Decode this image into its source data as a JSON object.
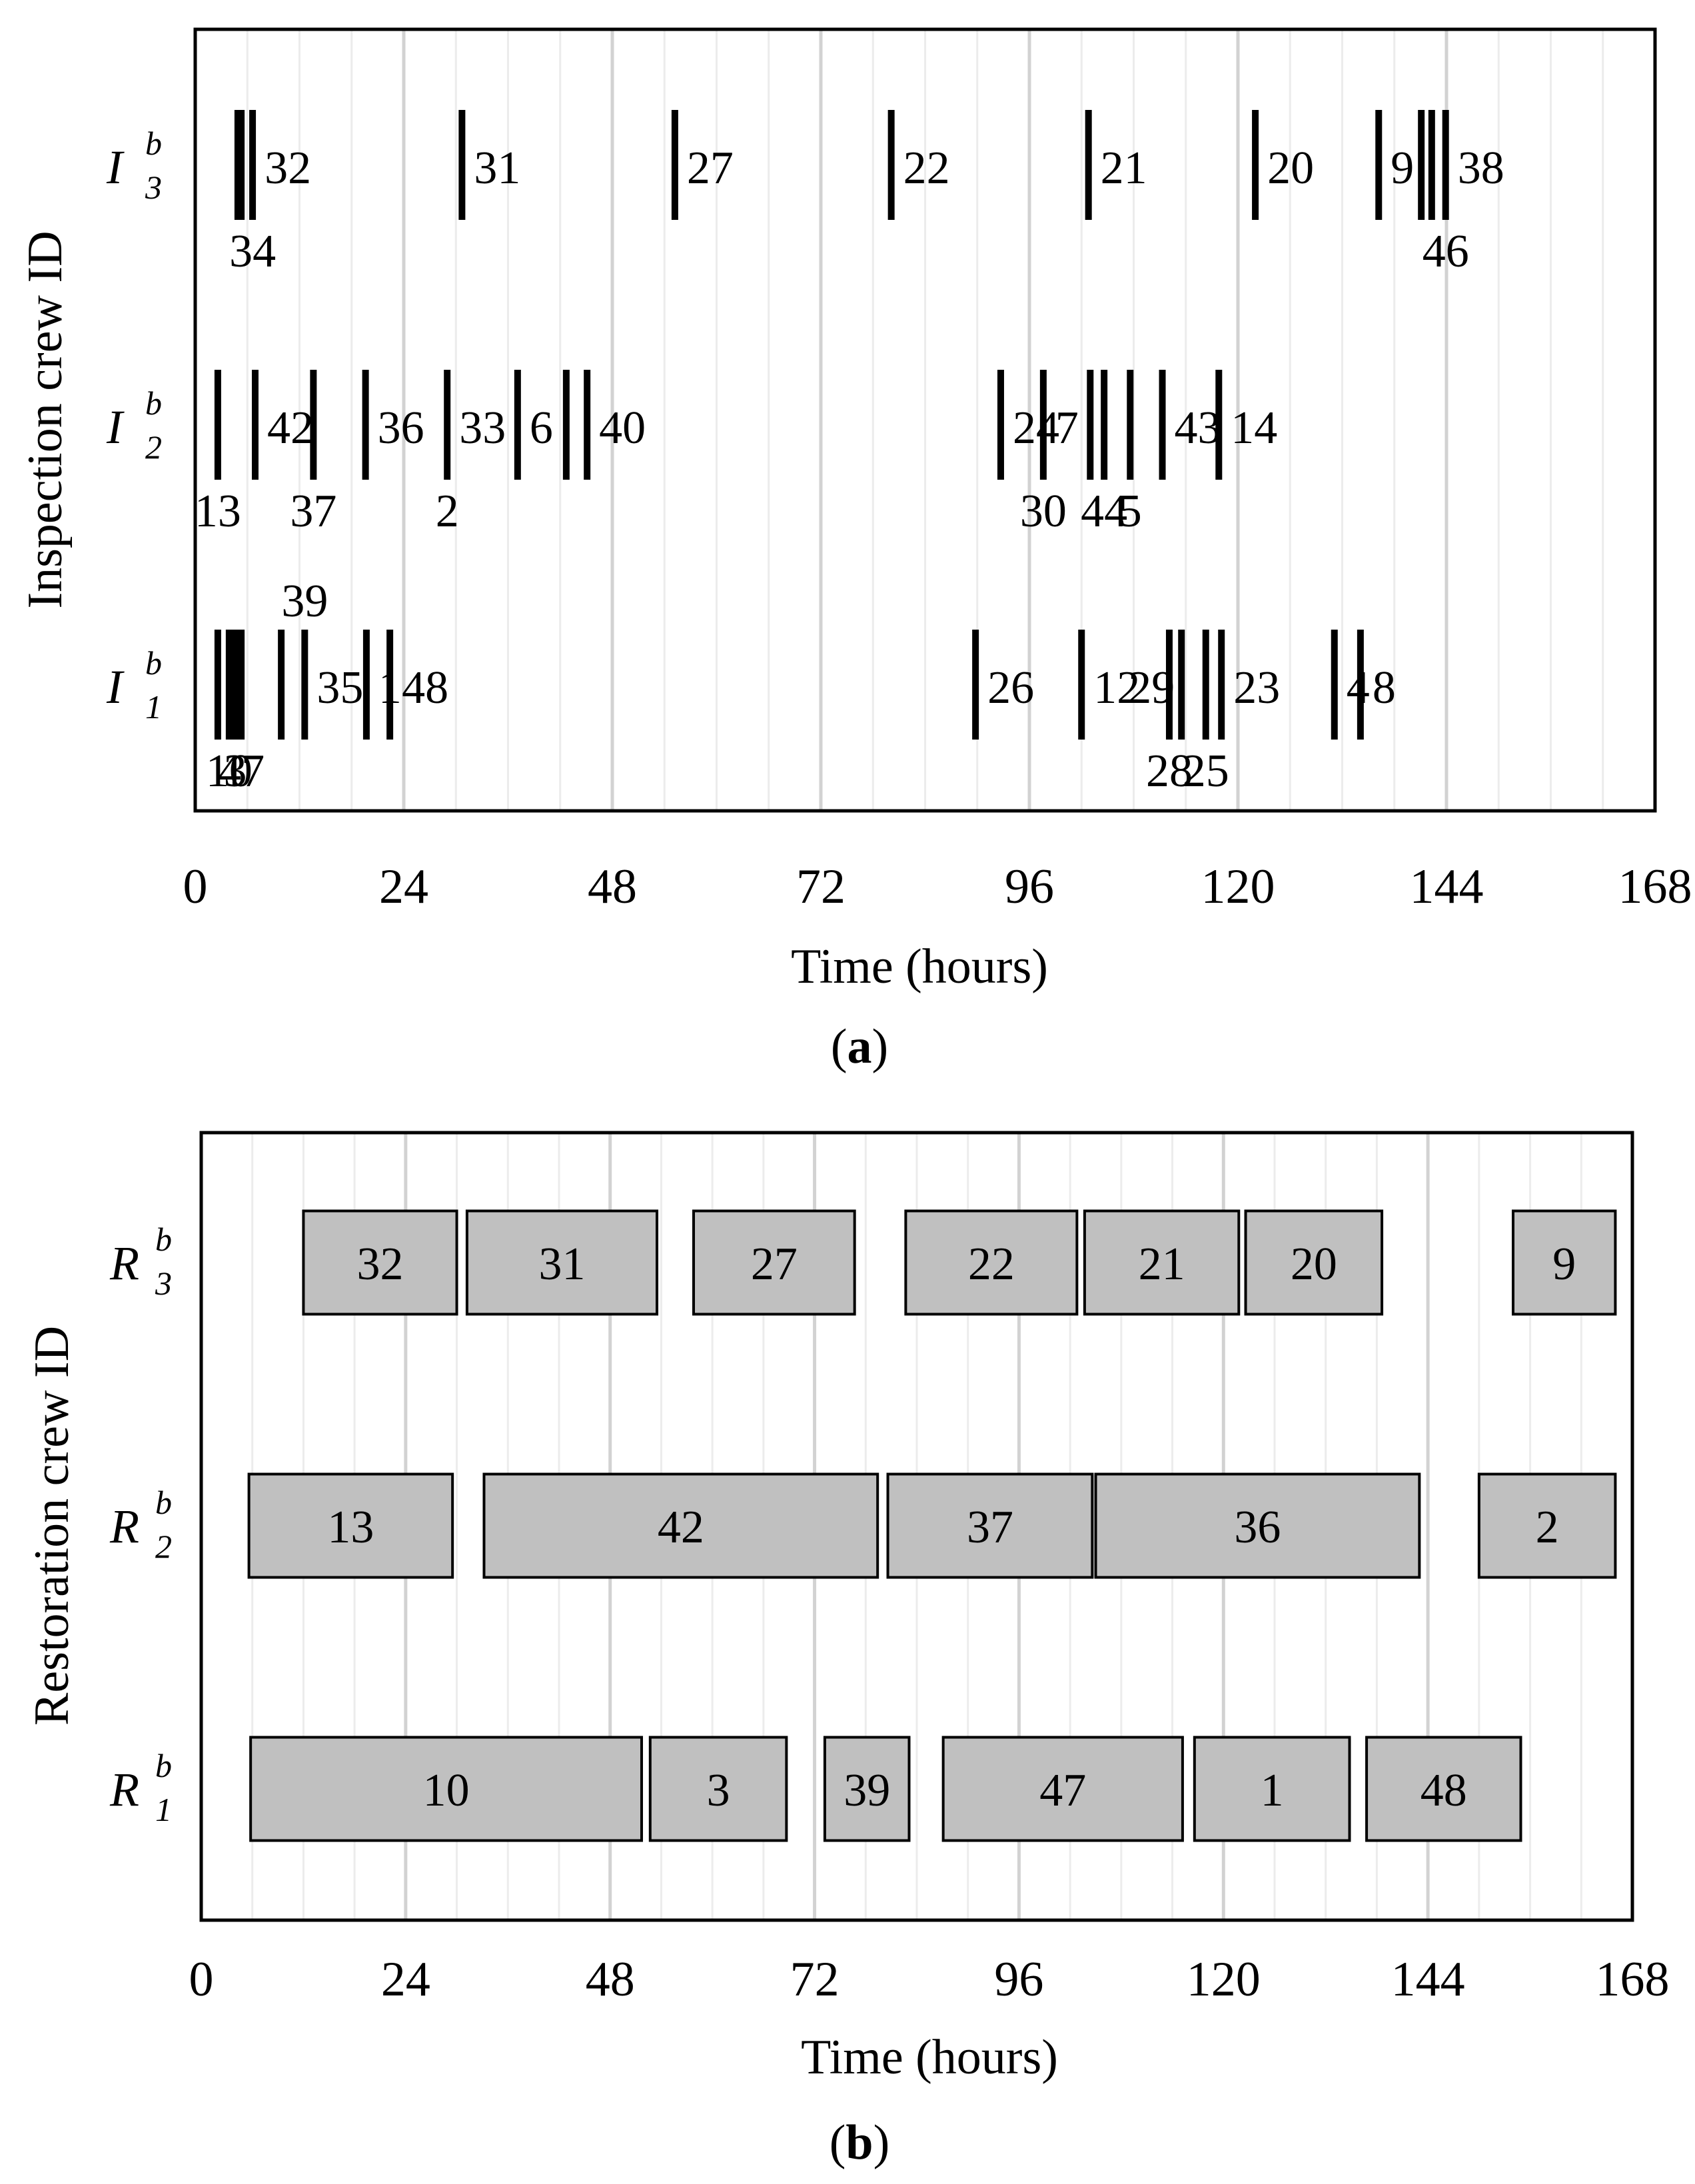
{
  "chart_data": [
    {
      "panel": "a",
      "type": "event",
      "caption_letter": "a",
      "xlabel": "Time (hours)",
      "ylabel": "Inspection crew ID",
      "xlim": [
        0,
        168
      ],
      "xticks": [
        "0",
        "24",
        "48",
        "72",
        "96",
        "120",
        "144",
        "168"
      ],
      "grid": "vertical",
      "crews": [
        {
          "name": "I",
          "sup": "b",
          "sub": "3",
          "events": [
            {
              "t": 4.9,
              "label": "",
              "above": ""
            },
            {
              "t": 5.3,
              "label": "",
              "above": ""
            },
            {
              "t": 6.6,
              "label": "32",
              "below": "34"
            },
            {
              "t": 30.7,
              "label": "31"
            },
            {
              "t": 55.2,
              "label": "27"
            },
            {
              "t": 80.1,
              "label": "22"
            },
            {
              "t": 102.8,
              "label": "21"
            },
            {
              "t": 122.0,
              "label": "20"
            },
            {
              "t": 136.2,
              "label": "9"
            },
            {
              "t": 141.1,
              "label": ""
            },
            {
              "t": 142.3,
              "label": ""
            },
            {
              "t": 143.9,
              "label": "38",
              "below": "46"
            }
          ]
        },
        {
          "name": "I",
          "sup": "b",
          "sub": "2",
          "events": [
            {
              "t": 2.6,
              "label": "",
              "below": "13"
            },
            {
              "t": 6.9,
              "label": "42"
            },
            {
              "t": 13.6,
              "label": "",
              "below": "37"
            },
            {
              "t": 19.6,
              "label": "36"
            },
            {
              "t": 29.0,
              "label": "33",
              "below": "2"
            },
            {
              "t": 37.1,
              "label": "6"
            },
            {
              "t": 42.7,
              "label": ""
            },
            {
              "t": 45.1,
              "label": "40"
            },
            {
              "t": 92.7,
              "label": "24"
            },
            {
              "t": 97.6,
              "label": "7",
              "below": "30"
            },
            {
              "t": 103.0,
              "label": ""
            },
            {
              "t": 104.6,
              "label": "",
              "below": "44"
            },
            {
              "t": 107.6,
              "label": "",
              "below": "5"
            },
            {
              "t": 111.3,
              "label": "43"
            },
            {
              "t": 117.8,
              "label": "14"
            }
          ]
        },
        {
          "name": "I",
          "sup": "b",
          "sub": "1",
          "events": [
            {
              "t": 2.6,
              "label": ""
            },
            {
              "t": 3.9,
              "label": "",
              "below": "10"
            },
            {
              "t": 4.6,
              "label": "",
              "below": "3"
            },
            {
              "t": 5.3,
              "label": "",
              "below": "47"
            },
            {
              "t": 9.9,
              "label": ""
            },
            {
              "t": 12.6,
              "label": "35",
              "above": "39"
            },
            {
              "t": 19.7,
              "label": "1"
            },
            {
              "t": 22.4,
              "label": "48"
            },
            {
              "t": 89.8,
              "label": "26"
            },
            {
              "t": 102.0,
              "label": "12"
            },
            {
              "t": 112.1,
              "label": "",
              "below": "28"
            },
            {
              "t": 113.5,
              "label": ""
            },
            {
              "t": 116.3,
              "label": "",
              "below": "25"
            },
            {
              "t": 118.1,
              "label": "23",
              "sub_ref": "29"
            },
            {
              "t": 131.1,
              "label": "4"
            },
            {
              "t": 134.1,
              "label": "8"
            }
          ]
        }
      ]
    },
    {
      "panel": "b",
      "type": "gantt",
      "caption_letter": "b",
      "xlabel": "Time (hours)",
      "ylabel": "Restoration crew ID",
      "xlim": [
        0,
        168
      ],
      "xticks": [
        "0",
        "24",
        "48",
        "72",
        "96",
        "120",
        "144",
        "168"
      ],
      "grid": "vertical",
      "bar_color": "#c0c0c0",
      "crews": [
        {
          "name": "R",
          "sup": "b",
          "sub": "3",
          "tasks": [
            {
              "label": "32",
              "start": 12.0,
              "end": 30.0
            },
            {
              "label": "31",
              "start": 31.2,
              "end": 53.5
            },
            {
              "label": "27",
              "start": 57.8,
              "end": 76.7
            },
            {
              "label": "22",
              "start": 82.7,
              "end": 102.8
            },
            {
              "label": "21",
              "start": 103.7,
              "end": 121.8
            },
            {
              "label": "20",
              "start": 122.6,
              "end": 138.6
            },
            {
              "label": "9",
              "start": 154.0,
              "end": 166.0
            }
          ]
        },
        {
          "name": "R",
          "sup": "b",
          "sub": "2",
          "tasks": [
            {
              "label": "13",
              "start": 5.6,
              "end": 29.5
            },
            {
              "label": "42",
              "start": 33.2,
              "end": 79.4
            },
            {
              "label": "37",
              "start": 80.6,
              "end": 104.6
            },
            {
              "label": "36",
              "start": 105.0,
              "end": 143.0
            },
            {
              "label": "2",
              "start": 150.0,
              "end": 166.0
            }
          ]
        },
        {
          "name": "R",
          "sup": "b",
          "sub": "1",
          "tasks": [
            {
              "label": "10",
              "start": 5.8,
              "end": 51.7
            },
            {
              "label": "3",
              "start": 52.7,
              "end": 68.7
            },
            {
              "label": "39",
              "start": 73.2,
              "end": 83.1
            },
            {
              "label": "47",
              "start": 87.1,
              "end": 115.2
            },
            {
              "label": "1",
              "start": 116.6,
              "end": 134.8
            },
            {
              "label": "48",
              "start": 136.8,
              "end": 154.9
            }
          ]
        }
      ]
    }
  ]
}
